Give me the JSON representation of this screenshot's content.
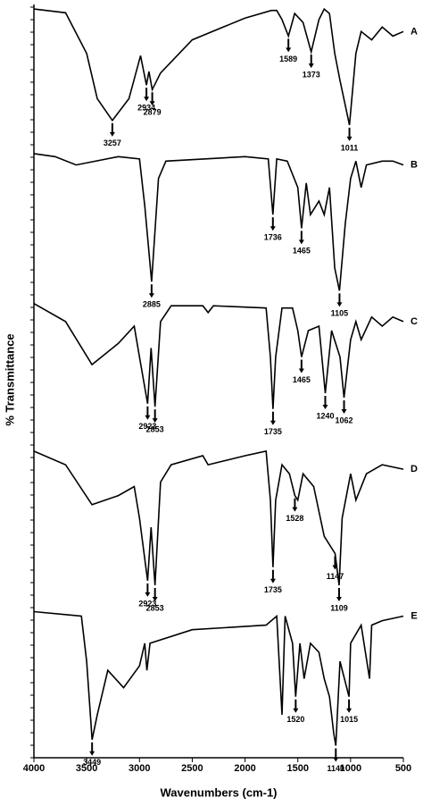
{
  "chart_data": {
    "type": "line",
    "xlabel": "Wavenumbers (cm-1)",
    "ylabel": "% Transmittance",
    "xlim": [
      4000,
      500
    ],
    "ylim": [
      0,
      100
    ],
    "xticks": [
      4000,
      3500,
      3000,
      2500,
      2000,
      1500,
      1000,
      500
    ],
    "series": [
      {
        "name": "A",
        "color": "#000000",
        "x": [
          4000,
          3700,
          3500,
          3400,
          3257,
          3100,
          2990,
          2934,
          2910,
          2879,
          2800,
          2500,
          2000,
          1750,
          1700,
          1650,
          1589,
          1530,
          1450,
          1373,
          1300,
          1250,
          1200,
          1150,
          1100,
          1011,
          950,
          900,
          800,
          700,
          600,
          500
        ],
        "values": [
          99.4,
          98.9,
          93.5,
          87.5,
          84.6,
          87.5,
          93.2,
          89.3,
          91.1,
          88.7,
          90.9,
          95.3,
          98.2,
          99.2,
          99.2,
          98.0,
          95.8,
          98.8,
          97.6,
          93.7,
          98.0,
          99.4,
          98.8,
          93.5,
          89.9,
          84.0,
          93.5,
          96.4,
          95.3,
          97.0,
          95.8,
          96.4
        ],
        "annotations": [
          3257,
          2934,
          2879,
          1589,
          1373,
          1011
        ]
      },
      {
        "name": "B",
        "color": "#000000",
        "x": [
          4000,
          3800,
          3600,
          3200,
          3000,
          2950,
          2885,
          2820,
          2750,
          2000,
          1780,
          1736,
          1700,
          1600,
          1500,
          1465,
          1420,
          1380,
          1300,
          1250,
          1200,
          1150,
          1105,
          1050,
          1000,
          950,
          900,
          850,
          700,
          600,
          500
        ],
        "values": [
          80.2,
          79.8,
          78.7,
          79.8,
          79.5,
          73.3,
          63.2,
          76.9,
          79.2,
          79.8,
          79.5,
          72.1,
          79.5,
          79.2,
          75.7,
          70.3,
          76.3,
          72.1,
          73.9,
          72.1,
          75.7,
          65.0,
          62.0,
          70.9,
          76.9,
          79.2,
          75.7,
          78.7,
          79.2,
          79.2,
          78.7
        ],
        "annotations": [
          2885,
          1736,
          1465,
          1105
        ]
      },
      {
        "name": "C",
        "color": "#000000",
        "x": [
          4000,
          3700,
          3450,
          3200,
          3050,
          3000,
          2923,
          2890,
          2853,
          2800,
          2700,
          2400,
          2350,
          2300,
          1800,
          1760,
          1735,
          1710,
          1650,
          1550,
          1500,
          1465,
          1400,
          1300,
          1240,
          1180,
          1100,
          1062,
          1000,
          950,
          900,
          800,
          700,
          600,
          500
        ],
        "values": [
          60.3,
          57.9,
          52.2,
          55.0,
          57.3,
          53.2,
          47.0,
          54.4,
          46.6,
          57.9,
          60.0,
          60.0,
          59.1,
          60.0,
          59.7,
          53.2,
          46.3,
          53.2,
          59.7,
          59.7,
          56.7,
          53.2,
          56.7,
          57.3,
          48.4,
          56.7,
          53.2,
          47.8,
          55.5,
          57.9,
          55.5,
          58.5,
          57.3,
          58.5,
          57.9
        ],
        "annotations": [
          2923,
          2853,
          1735,
          1465,
          1240,
          1062
        ]
      },
      {
        "name": "D",
        "color": "#000000",
        "x": [
          4000,
          3700,
          3450,
          3200,
          3050,
          3000,
          2923,
          2890,
          2853,
          2800,
          2700,
          2400,
          2350,
          2000,
          1800,
          1760,
          1735,
          1710,
          1650,
          1580,
          1528,
          1500,
          1450,
          1350,
          1250,
          1147,
          1109,
          1080,
          1000,
          950,
          850,
          700,
          500
        ],
        "values": [
          40.7,
          38.9,
          33.6,
          34.8,
          36.0,
          31.8,
          23.5,
          30.6,
          22.9,
          36.6,
          38.9,
          40.1,
          38.9,
          40.1,
          40.7,
          34.2,
          25.3,
          34.2,
          38.9,
          37.7,
          34.8,
          34.2,
          37.7,
          36.0,
          29.4,
          27.1,
          22.9,
          31.8,
          37.7,
          34.2,
          37.7,
          38.9,
          38.3
        ],
        "annotations": [
          2923,
          2853,
          1735,
          1528,
          1147,
          1109
        ]
      },
      {
        "name": "E",
        "color": "#000000",
        "x": [
          4000,
          3700,
          3550,
          3500,
          3449,
          3400,
          3300,
          3150,
          3000,
          2950,
          2930,
          2900,
          2500,
          1800,
          1700,
          1650,
          1620,
          1550,
          1520,
          1480,
          1440,
          1380,
          1300,
          1250,
          1200,
          1160,
          1140,
          1100,
          1015,
          1000,
          900,
          820,
          800,
          700,
          500
        ],
        "values": [
          19.4,
          19.0,
          18.8,
          12.8,
          2.4,
          5.7,
          11.6,
          9.3,
          12.2,
          15.2,
          11.6,
          15.2,
          17.0,
          17.6,
          18.8,
          5.7,
          18.8,
          15.2,
          8.1,
          15.2,
          10.5,
          15.2,
          14.0,
          10.5,
          8.1,
          3.3,
          1.6,
          12.8,
          8.1,
          15.2,
          17.6,
          10.5,
          17.6,
          18.2,
          18.8
        ],
        "annotations": [
          3449,
          1520,
          1140,
          1015
        ]
      }
    ]
  }
}
